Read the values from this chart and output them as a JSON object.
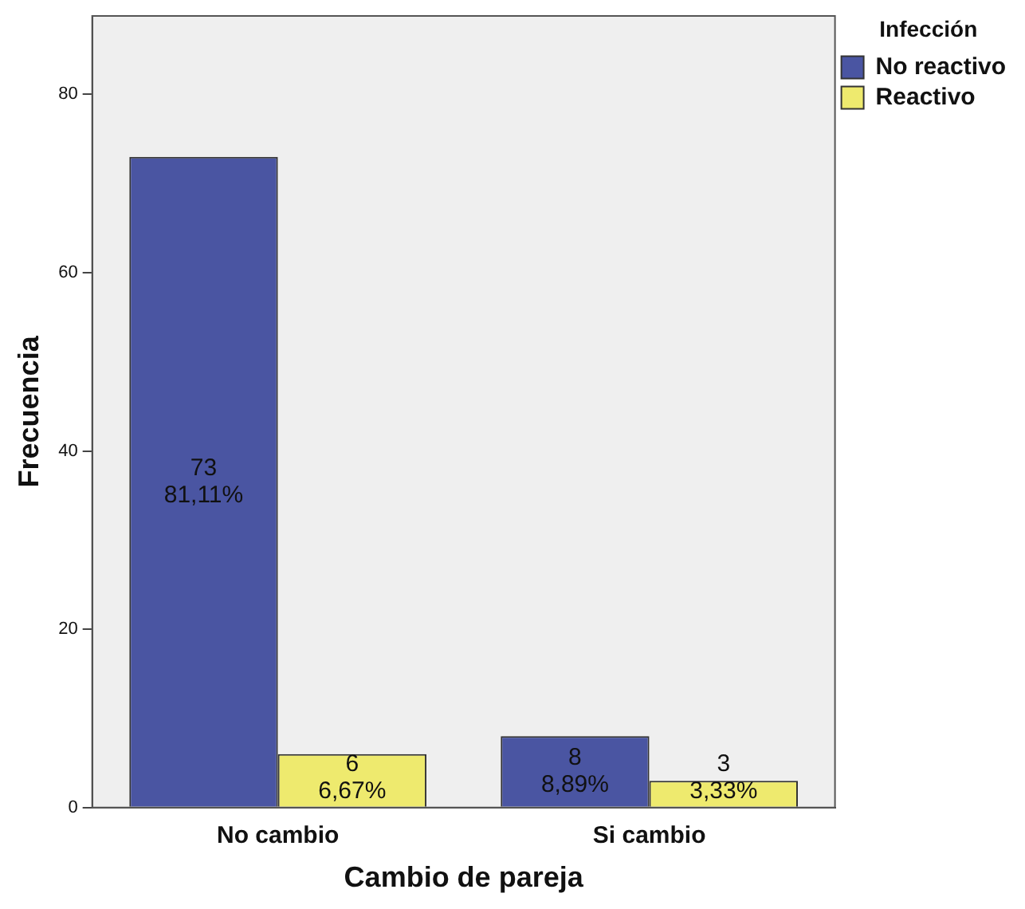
{
  "chart_data": {
    "type": "bar",
    "xlabel": "Cambio de pareja",
    "ylabel": "Frecuencia",
    "legend_title": "Infección",
    "categories": [
      "No cambio",
      "Si cambio"
    ],
    "series": [
      {
        "name": "No reactivo",
        "color": "#4a55a2",
        "values": [
          73,
          8
        ],
        "value_labels": [
          "73\n81,11%",
          "8\n8,89%"
        ]
      },
      {
        "name": "Reactivo",
        "color": "#eeea6e",
        "values": [
          6,
          3
        ],
        "value_labels": [
          "6\n6,67%",
          "3\n3,33%"
        ]
      }
    ],
    "ylim": [
      0,
      88.8
    ],
    "yticks": [
      0,
      20,
      40,
      60,
      80
    ],
    "grid": false,
    "legend": "top right"
  }
}
